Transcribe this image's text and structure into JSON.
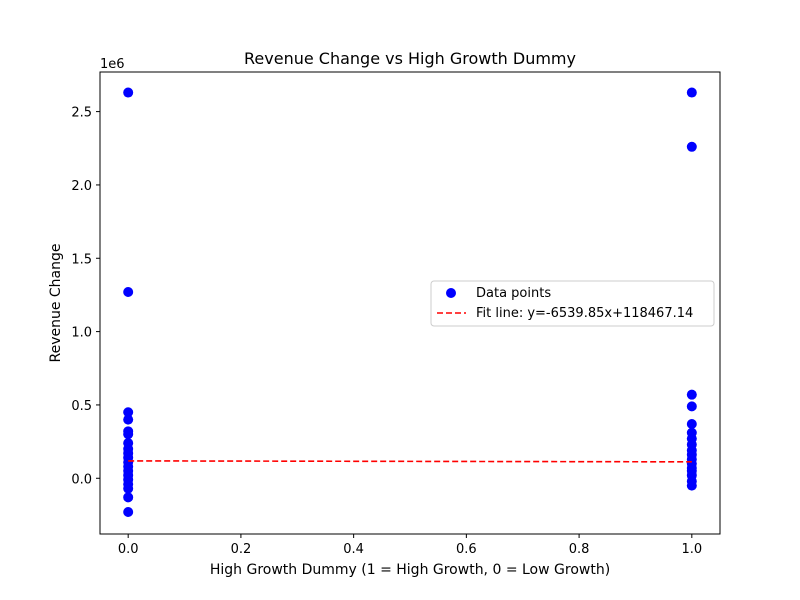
{
  "chart_data": {
    "type": "scatter",
    "title": "Revenue Change vs High Growth Dummy",
    "xlabel": "High Growth Dummy (1 = High Growth, 0 = Low Growth)",
    "ylabel": "Revenue Change",
    "y_offset_label": "1e6",
    "xlim": [
      -0.05,
      1.05
    ],
    "ylim": [
      -380000,
      2770000
    ],
    "x_ticks": [
      0.0,
      0.2,
      0.4,
      0.6,
      0.8,
      1.0
    ],
    "x_tick_labels": [
      "0.0",
      "0.2",
      "0.4",
      "0.6",
      "0.8",
      "1.0"
    ],
    "y_ticks": [
      0,
      500000,
      1000000,
      1500000,
      2000000,
      2500000
    ],
    "y_tick_labels": [
      "0.0",
      "0.5",
      "1.0",
      "1.5",
      "2.0",
      "2.5"
    ],
    "grid": false,
    "legend_position": "center-right",
    "series": [
      {
        "name": "Data points",
        "kind": "scatter",
        "color": "#0000ff",
        "points": [
          {
            "x": 0,
            "y": 2630000
          },
          {
            "x": 0,
            "y": 1270000
          },
          {
            "x": 0,
            "y": 450000
          },
          {
            "x": 0,
            "y": 400000
          },
          {
            "x": 0,
            "y": 320000
          },
          {
            "x": 0,
            "y": 300000
          },
          {
            "x": 0,
            "y": 240000
          },
          {
            "x": 0,
            "y": 200000
          },
          {
            "x": 0,
            "y": 170000
          },
          {
            "x": 0,
            "y": 140000
          },
          {
            "x": 0,
            "y": 110000
          },
          {
            "x": 0,
            "y": 80000
          },
          {
            "x": 0,
            "y": 50000
          },
          {
            "x": 0,
            "y": 20000
          },
          {
            "x": 0,
            "y": -10000
          },
          {
            "x": 0,
            "y": -40000
          },
          {
            "x": 0,
            "y": -70000
          },
          {
            "x": 0,
            "y": -130000
          },
          {
            "x": 0,
            "y": -230000
          },
          {
            "x": 1,
            "y": 2630000
          },
          {
            "x": 1,
            "y": 2260000
          },
          {
            "x": 1,
            "y": 570000
          },
          {
            "x": 1,
            "y": 490000
          },
          {
            "x": 1,
            "y": 370000
          },
          {
            "x": 1,
            "y": 310000
          },
          {
            "x": 1,
            "y": 270000
          },
          {
            "x": 1,
            "y": 230000
          },
          {
            "x": 1,
            "y": 190000
          },
          {
            "x": 1,
            "y": 160000
          },
          {
            "x": 1,
            "y": 130000
          },
          {
            "x": 1,
            "y": 100000
          },
          {
            "x": 1,
            "y": 70000
          },
          {
            "x": 1,
            "y": 50000
          },
          {
            "x": 1,
            "y": 20000
          },
          {
            "x": 1,
            "y": -20000
          },
          {
            "x": 1,
            "y": -50000
          }
        ]
      },
      {
        "name": "Fit line: y=-6539.85x+118467.14",
        "kind": "line",
        "color": "#ff0000",
        "dashed": true,
        "slope": -6539.85,
        "intercept": 118467.14,
        "x_range": [
          0,
          1
        ]
      }
    ]
  }
}
